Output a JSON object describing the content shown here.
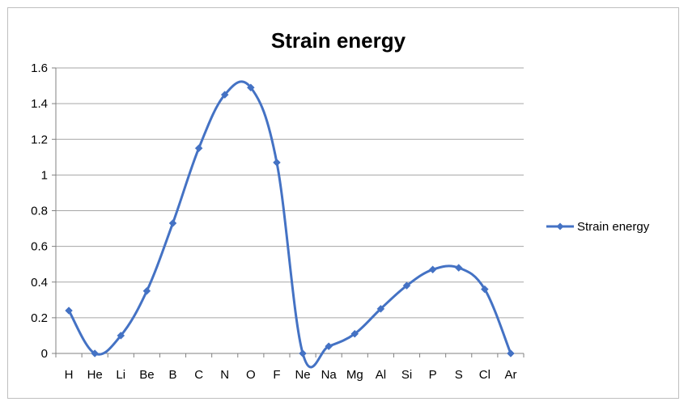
{
  "chart_data": {
    "type": "line",
    "title": "Strain energy",
    "xlabel": "",
    "ylabel": "",
    "categories": [
      "H",
      "He",
      "Li",
      "Be",
      "B",
      "C",
      "N",
      "O",
      "F",
      "Ne",
      "Na",
      "Mg",
      "Al",
      "Si",
      "P",
      "S",
      "Cl",
      "Ar"
    ],
    "series": [
      {
        "name": "Strain energy",
        "values": [
          0.24,
          0.0,
          0.1,
          0.35,
          0.73,
          1.15,
          1.45,
          1.49,
          1.07,
          0.0,
          0.04,
          0.11,
          0.25,
          0.38,
          0.47,
          0.48,
          0.36,
          0.0
        ]
      }
    ],
    "ylim": [
      0,
      1.6
    ],
    "yticks": [
      "0",
      "0.2",
      "0.4",
      "0.6",
      "0.8",
      "1",
      "1.2",
      "1.4",
      "1.6"
    ],
    "grid": true,
    "legend": "right",
    "colors": {
      "series": "#4472c4",
      "grid": "#a6a6a6",
      "axis": "#808080"
    }
  }
}
